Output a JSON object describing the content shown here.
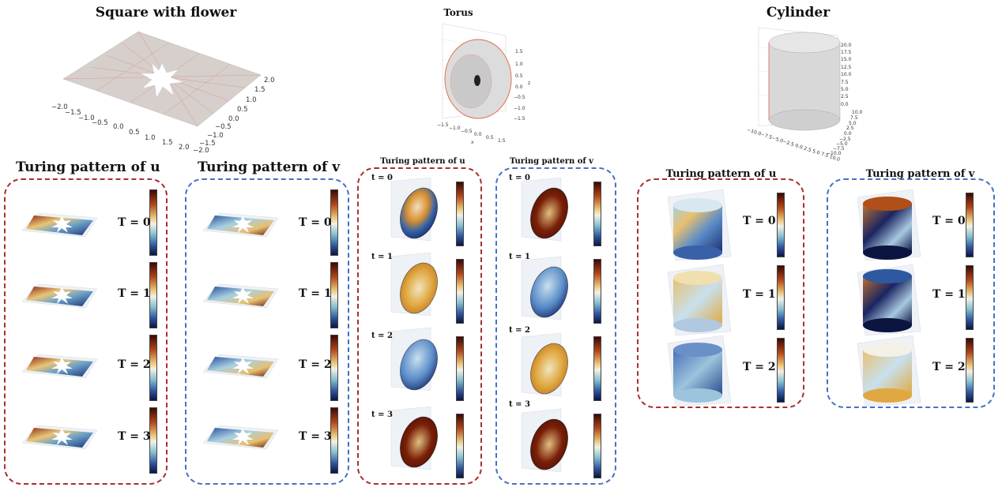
{
  "header_titles": {
    "square": "Square with flower",
    "torus": "Torus",
    "cylinder": "Cylinder"
  },
  "square_mesh": {
    "x_ticks": [
      "−2.0",
      "−1.5",
      "−1.0",
      "−0.5",
      "0.0",
      "0.5",
      "1.0",
      "1.5",
      "2.0"
    ],
    "y_ticks": [
      "2.0",
      "1.5",
      "1.0",
      "0.5",
      "0.0",
      "−0.5",
      "−1.0",
      "−1.5",
      "−2.0"
    ]
  },
  "torus_mesh": {
    "z_ticks": [
      "1.5",
      "1.0",
      "0.5",
      "0.0",
      "−0.5",
      "−1.0",
      "−1.5"
    ],
    "z_label": "z",
    "x_label": "x"
  },
  "cylinder_mesh": {
    "z_ticks": [
      "20.0",
      "17.5",
      "15.0",
      "12.5",
      "10.0",
      "7.5",
      "5.0",
      "2.5",
      "0.0"
    ],
    "y_ticks": [
      "10.0",
      "7.5",
      "5.0",
      "2.5",
      "0.0",
      "−2.5",
      "−5.0",
      "−7.5",
      "−10.0"
    ],
    "x_label": "−10.0−7.5−5.0−2.5 0.0 2.5 5.0 7.5 10.0"
  },
  "panels": {
    "sq_u_title": "Turing pattern of u",
    "sq_v_title": "Turing pattern of v",
    "to_u_title": "Turing pattern of u",
    "to_v_title": "Turing pattern of v",
    "cy_u_title": "Turing pattern of u",
    "cy_v_title": "Turing pattern of v"
  },
  "time_labels_upper": [
    "T = 0",
    "T = 1",
    "T = 2",
    "T = 3"
  ],
  "time_labels_lower": [
    "t = 0",
    "t = 1",
    "t = 2",
    "t = 3"
  ],
  "colors": {
    "panel_red": "#a8302c",
    "panel_blue": "#4472c4",
    "mesh_edge": "#e07050",
    "mesh_face": "#d6cfcc"
  }
}
